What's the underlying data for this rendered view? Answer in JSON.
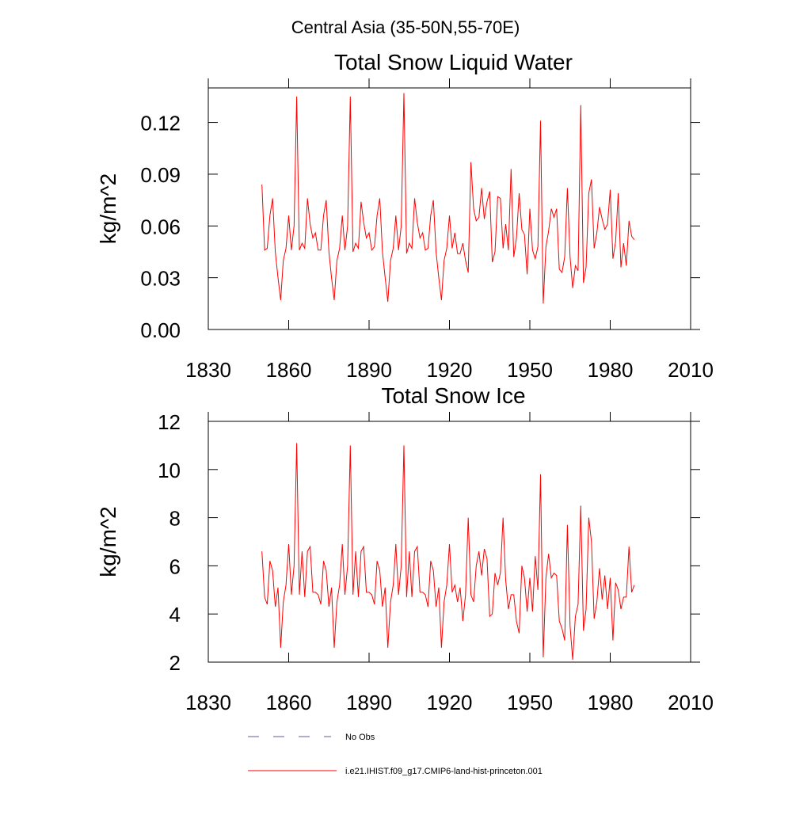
{
  "title": "Central Asia (35-50N,55-70E)",
  "legend": [
    {
      "name": "No Obs",
      "color": "#5b5ba8",
      "style": "dashed"
    },
    {
      "name": "i.e21.IHIST.f09_g17.CMIP6-land-hist-princeton.001",
      "color": "#ff0000",
      "style": "solid"
    }
  ],
  "chart_data": [
    {
      "type": "line",
      "title": "Total Snow Liquid Water",
      "ylabel": "kg/m^2",
      "color": "#ff0000",
      "x": [
        1850,
        1851,
        1852,
        1853,
        1854,
        1855,
        1856,
        1857,
        1858,
        1859,
        1860,
        1861,
        1862,
        1863,
        1864,
        1865,
        1866,
        1867,
        1868,
        1869,
        1870,
        1871,
        1872,
        1873,
        1874,
        1875,
        1876,
        1877,
        1878,
        1879,
        1880,
        1881,
        1882,
        1883,
        1884,
        1885,
        1886,
        1887,
        1888,
        1889,
        1890,
        1891,
        1892,
        1893,
        1894,
        1895,
        1896,
        1897,
        1898,
        1899,
        1900,
        1901,
        1902,
        1903,
        1904,
        1905,
        1906,
        1907,
        1908,
        1909,
        1910,
        1911,
        1912,
        1913,
        1914,
        1915,
        1916,
        1917,
        1918,
        1919,
        1920,
        1921,
        1922,
        1923,
        1924,
        1925,
        1926,
        1927,
        1928,
        1929,
        1930,
        1931,
        1932,
        1933,
        1934,
        1935,
        1936,
        1937,
        1938,
        1939,
        1940,
        1941,
        1942,
        1943,
        1944,
        1945,
        1946,
        1947,
        1948,
        1949,
        1950,
        1951,
        1952,
        1953,
        1954,
        1955,
        1956,
        1957,
        1958,
        1959,
        1960,
        1961,
        1962,
        1963,
        1964,
        1965,
        1966,
        1967,
        1968,
        1969,
        1970,
        1971,
        1972,
        1973,
        1974,
        1975,
        1976,
        1977,
        1978,
        1979,
        1980,
        1981,
        1982,
        1983,
        1984,
        1985,
        1986,
        1987,
        1988,
        1989
      ],
      "values": [
        0.084,
        0.046,
        0.047,
        0.066,
        0.076,
        0.045,
        0.03,
        0.017,
        0.04,
        0.047,
        0.066,
        0.046,
        0.06,
        0.135,
        0.046,
        0.05,
        0.047,
        0.076,
        0.061,
        0.053,
        0.056,
        0.046,
        0.046,
        0.066,
        0.075,
        0.045,
        0.03,
        0.017,
        0.04,
        0.047,
        0.066,
        0.046,
        0.06,
        0.135,
        0.045,
        0.05,
        0.047,
        0.074,
        0.062,
        0.053,
        0.056,
        0.046,
        0.048,
        0.066,
        0.076,
        0.045,
        0.03,
        0.016,
        0.04,
        0.047,
        0.066,
        0.046,
        0.06,
        0.137,
        0.044,
        0.05,
        0.047,
        0.076,
        0.062,
        0.053,
        0.056,
        0.046,
        0.047,
        0.066,
        0.075,
        0.045,
        0.03,
        0.017,
        0.04,
        0.047,
        0.066,
        0.047,
        0.056,
        0.044,
        0.044,
        0.05,
        0.04,
        0.033,
        0.097,
        0.07,
        0.063,
        0.065,
        0.082,
        0.064,
        0.074,
        0.08,
        0.039,
        0.045,
        0.077,
        0.076,
        0.047,
        0.061,
        0.046,
        0.093,
        0.042,
        0.053,
        0.079,
        0.058,
        0.055,
        0.032,
        0.07,
        0.046,
        0.041,
        0.048,
        0.121,
        0.015,
        0.048,
        0.057,
        0.07,
        0.065,
        0.07,
        0.035,
        0.033,
        0.042,
        0.082,
        0.042,
        0.024,
        0.037,
        0.034,
        0.13,
        0.027,
        0.036,
        0.079,
        0.087,
        0.047,
        0.056,
        0.071,
        0.064,
        0.058,
        0.061,
        0.081,
        0.041,
        0.051,
        0.079,
        0.036,
        0.05,
        0.037,
        0.063,
        0.054,
        0.052
      ],
      "xlim": [
        1830,
        2010
      ],
      "xticks": [
        1830,
        1860,
        1890,
        1920,
        1950,
        1980,
        2010
      ],
      "ylim": [
        0,
        0.14
      ],
      "yticks": [
        {
          "value": 0,
          "label": "0.00"
        },
        {
          "value": 0.03,
          "label": "0.03"
        },
        {
          "value": 0.06,
          "label": "0.06"
        },
        {
          "value": 0.09,
          "label": "0.09"
        },
        {
          "value": 0.12,
          "label": "0.12"
        }
      ]
    },
    {
      "type": "line",
      "title": "Total Snow Ice",
      "ylabel": "kg/m^2",
      "color": "#ff0000",
      "x": [
        1850,
        1851,
        1852,
        1853,
        1854,
        1855,
        1856,
        1857,
        1858,
        1859,
        1860,
        1861,
        1862,
        1863,
        1864,
        1865,
        1866,
        1867,
        1868,
        1869,
        1870,
        1871,
        1872,
        1873,
        1874,
        1875,
        1876,
        1877,
        1878,
        1879,
        1880,
        1881,
        1882,
        1883,
        1884,
        1885,
        1886,
        1887,
        1888,
        1889,
        1890,
        1891,
        1892,
        1893,
        1894,
        1895,
        1896,
        1897,
        1898,
        1899,
        1900,
        1901,
        1902,
        1903,
        1904,
        1905,
        1906,
        1907,
        1908,
        1909,
        1910,
        1911,
        1912,
        1913,
        1914,
        1915,
        1916,
        1917,
        1918,
        1919,
        1920,
        1921,
        1922,
        1923,
        1924,
        1925,
        1926,
        1927,
        1928,
        1929,
        1930,
        1931,
        1932,
        1933,
        1934,
        1935,
        1936,
        1937,
        1938,
        1939,
        1940,
        1941,
        1942,
        1943,
        1944,
        1945,
        1946,
        1947,
        1948,
        1949,
        1950,
        1951,
        1952,
        1953,
        1954,
        1955,
        1956,
        1957,
        1958,
        1959,
        1960,
        1961,
        1962,
        1963,
        1964,
        1965,
        1966,
        1967,
        1968,
        1969,
        1970,
        1971,
        1972,
        1973,
        1974,
        1975,
        1976,
        1977,
        1978,
        1979,
        1980,
        1981,
        1982,
        1983,
        1984,
        1985,
        1986,
        1987,
        1988,
        1989
      ],
      "values": [
        6.6,
        4.7,
        4.4,
        6.2,
        5.8,
        4.3,
        5.1,
        2.6,
        4.5,
        5.2,
        6.9,
        4.8,
        6.0,
        11.1,
        4.8,
        6.6,
        4.7,
        6.6,
        6.8,
        4.9,
        4.9,
        4.8,
        4.4,
        6.2,
        5.8,
        4.3,
        5.1,
        2.6,
        4.5,
        5.2,
        6.9,
        4.8,
        6.0,
        11.0,
        4.8,
        6.6,
        4.7,
        6.6,
        6.8,
        4.9,
        4.9,
        4.8,
        4.4,
        6.2,
        5.8,
        4.3,
        5.1,
        2.6,
        4.5,
        5.2,
        6.9,
        4.8,
        6.0,
        11.0,
        4.7,
        6.6,
        4.7,
        6.6,
        6.8,
        4.9,
        4.9,
        4.8,
        4.3,
        6.2,
        5.8,
        4.3,
        5.1,
        2.6,
        4.5,
        5.2,
        6.9,
        4.9,
        5.2,
        4.5,
        5.1,
        3.7,
        4.8,
        8.0,
        4.8,
        4.5,
        6.0,
        6.6,
        5.6,
        6.7,
        6.3,
        3.9,
        4.0,
        5.7,
        5.2,
        5.7,
        8.0,
        5.4,
        4.2,
        4.8,
        4.8,
        3.7,
        3.2,
        6.0,
        5.5,
        4.1,
        5.5,
        4.1,
        6.4,
        5.0,
        9.8,
        2.2,
        5.5,
        6.5,
        5.5,
        5.7,
        5.6,
        3.7,
        3.4,
        2.9,
        7.7,
        3.5,
        2.1,
        3.9,
        4.4,
        8.5,
        3.3,
        4.2,
        8.0,
        7.0,
        3.8,
        4.5,
        5.9,
        4.6,
        5.6,
        4.2,
        5.5,
        2.9,
        5.3,
        5.0,
        4.2,
        4.7,
        4.7,
        6.8,
        4.9,
        5.2
      ],
      "xlim": [
        1830,
        2010
      ],
      "xticks": [
        1830,
        1860,
        1890,
        1920,
        1950,
        1980,
        2010
      ],
      "ylim": [
        2,
        12
      ],
      "yticks": [
        2,
        4,
        6,
        8,
        10,
        12
      ]
    }
  ]
}
